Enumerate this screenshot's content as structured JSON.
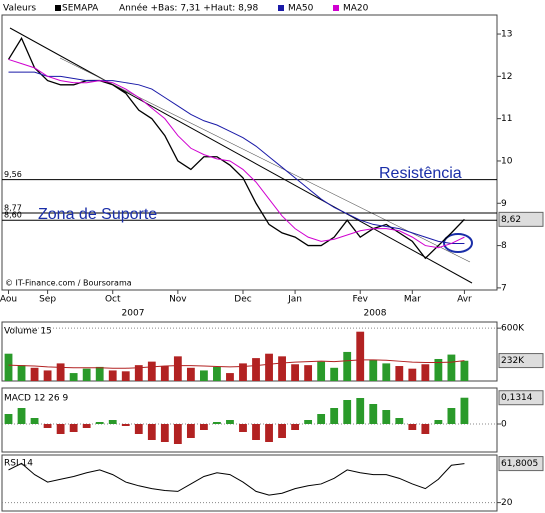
{
  "header": {
    "title": "Valeurs",
    "range": "Année +Bas: 7,31 +Haut: 8,98"
  },
  "chart_data": [
    {
      "type": "line",
      "categories": [
        "Aou",
        null,
        null,
        "Sep",
        null,
        null,
        null,
        null,
        "Oct",
        null,
        null,
        null,
        null,
        "Nov",
        null,
        null,
        null,
        null,
        "Dec",
        null,
        null,
        null,
        "Jan",
        null,
        null,
        null,
        null,
        "Fev",
        null,
        null,
        null,
        "Mar",
        null,
        null,
        null,
        "Avr",
        null,
        null
      ],
      "years": [
        "2007",
        "2008"
      ],
      "series": [
        {
          "name": "SEMAPA",
          "color": "#000000",
          "values": [
            12.4,
            12.9,
            12.2,
            11.9,
            11.8,
            11.8,
            11.9,
            11.9,
            11.8,
            11.6,
            11.2,
            11.0,
            10.6,
            10.0,
            9.8,
            10.1,
            10.1,
            9.9,
            9.6,
            9.0,
            8.5,
            8.3,
            8.2,
            8.0,
            8.0,
            8.2,
            8.6,
            8.2,
            8.4,
            8.5,
            8.3,
            8.1,
            7.7,
            8.0,
            8.3,
            8.62,
            null,
            null
          ]
        },
        {
          "name": "MA50",
          "color": "#1a1aa8",
          "values": [
            12.1,
            12.1,
            12.1,
            12.0,
            12.0,
            11.95,
            11.9,
            11.9,
            11.9,
            11.85,
            11.8,
            11.7,
            11.5,
            11.3,
            11.1,
            10.95,
            10.85,
            10.7,
            10.55,
            10.35,
            10.1,
            9.85,
            9.6,
            9.35,
            9.1,
            8.9,
            8.75,
            8.6,
            8.5,
            8.45,
            8.4,
            8.3,
            8.2,
            8.1,
            8.05,
            8.05,
            null,
            null
          ]
        },
        {
          "name": "MA20",
          "color": "#d000d0",
          "values": [
            12.4,
            12.3,
            12.2,
            12.0,
            11.9,
            11.85,
            11.85,
            11.9,
            11.85,
            11.7,
            11.5,
            11.25,
            11.0,
            10.6,
            10.3,
            10.15,
            10.05,
            10.0,
            9.8,
            9.5,
            9.1,
            8.7,
            8.4,
            8.2,
            8.1,
            8.15,
            8.25,
            8.35,
            8.4,
            8.4,
            8.35,
            8.2,
            8.0,
            7.95,
            8.05,
            8.2,
            null,
            null
          ]
        }
      ],
      "ylim": [
        6.95,
        13.45
      ],
      "yticks": [
        7,
        8,
        9,
        10,
        11,
        12,
        13
      ],
      "levels": [
        {
          "value": 9.56,
          "label": "9,56"
        },
        {
          "value": 8.77,
          "label": "8,77"
        },
        {
          "value": 8.6,
          "label": "8,60"
        }
      ],
      "last": {
        "value": 8.62,
        "label": "8,62"
      },
      "annotations": [
        "Resistência",
        "Zona de Suporte"
      ],
      "source": "© IT-Finance.com / Boursorama"
    },
    {
      "type": "bar",
      "title": "Volume 15",
      "up_color": "#2a9a2a",
      "down_color": "#b22222",
      "values": [
        310000,
        180000,
        150000,
        120000,
        200000,
        90000,
        140000,
        160000,
        120000,
        110000,
        180000,
        220000,
        170000,
        280000,
        150000,
        120000,
        160000,
        90000,
        200000,
        260000,
        310000,
        280000,
        190000,
        180000,
        220000,
        150000,
        330000,
        560000,
        240000,
        200000,
        170000,
        140000,
        190000,
        250000,
        300000,
        230000,
        null,
        null
      ],
      "average": {
        "color": "#b22222",
        "values": [
          180000,
          175000,
          170000,
          160000,
          155000,
          150000,
          150000,
          150000,
          145000,
          145000,
          150000,
          160000,
          170000,
          175000,
          175000,
          170000,
          165000,
          160000,
          165000,
          175000,
          190000,
          205000,
          215000,
          220000,
          225000,
          220000,
          230000,
          240000,
          240000,
          235000,
          225000,
          215000,
          210000,
          210000,
          215000,
          232000,
          null,
          null
        ]
      },
      "ylim": [
        0,
        670000
      ],
      "yticks": [
        {
          "value": 600000,
          "label": "600K"
        }
      ],
      "last": {
        "value": 232000,
        "label": "232K"
      }
    },
    {
      "type": "bar",
      "title": "MACD 12 26 9",
      "up_color": "#2a9a2a",
      "down_color": "#b22222",
      "values": [
        0.05,
        0.08,
        0.03,
        -0.02,
        -0.05,
        -0.04,
        -0.02,
        0.01,
        0.02,
        -0.01,
        -0.05,
        -0.08,
        -0.09,
        -0.1,
        -0.07,
        -0.03,
        0.01,
        0.02,
        -0.04,
        -0.08,
        -0.09,
        -0.07,
        -0.03,
        0.02,
        0.05,
        0.08,
        0.12,
        0.13,
        0.1,
        0.07,
        0.03,
        -0.03,
        -0.05,
        0.02,
        0.08,
        0.1314,
        null,
        null
      ],
      "ylim": [
        -0.14,
        0.18
      ],
      "yticks": [
        0
      ],
      "last": {
        "value": 0.1314,
        "label": "0,1314"
      }
    },
    {
      "type": "line",
      "title": "RSI 14",
      "color": "#000000",
      "values": [
        55,
        62,
        50,
        42,
        45,
        48,
        52,
        55,
        50,
        42,
        38,
        35,
        33,
        32,
        40,
        48,
        52,
        50,
        42,
        32,
        28,
        30,
        35,
        38,
        40,
        46,
        55,
        52,
        50,
        50,
        46,
        40,
        35,
        45,
        60,
        61.8005,
        null,
        null
      ],
      "ylim": [
        11,
        71
      ],
      "yticks": [
        20
      ],
      "last": {
        "value": 61.8005,
        "label": "61,8005"
      }
    }
  ]
}
